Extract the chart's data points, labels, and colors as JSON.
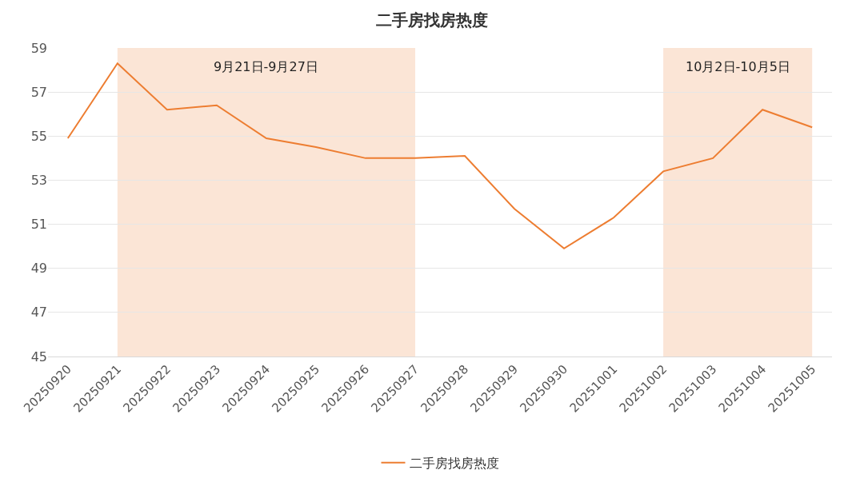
{
  "chart_data": {
    "type": "line",
    "title": "二手房找房热度",
    "categories": [
      "20250920",
      "20250921",
      "20250922",
      "20250923",
      "20250924",
      "20250925",
      "20250926",
      "20250927",
      "20250928",
      "20250929",
      "20250930",
      "20251001",
      "20251002",
      "20251003",
      "20251004",
      "20251005"
    ],
    "series": [
      {
        "name": "二手房找房热度",
        "color": "#ed7d31",
        "values": [
          54.9,
          58.3,
          56.2,
          56.4,
          54.9,
          54.5,
          54.0,
          54.0,
          54.1,
          51.7,
          49.9,
          51.3,
          53.4,
          54.0,
          56.2,
          55.4
        ]
      }
    ],
    "ylim": [
      45,
      59
    ],
    "yticks": [
      45,
      47,
      49,
      51,
      53,
      55,
      57,
      59
    ],
    "bands": [
      {
        "axis": "x",
        "from": "20250921",
        "to": "20250927",
        "label": "9月21日-9月27日",
        "color": "#fbe5d6"
      },
      {
        "axis": "x",
        "from": "20251002",
        "to": "20251005",
        "label": "10月2日-10月5日",
        "color": "#fbe5d6"
      }
    ],
    "grid": "y",
    "legend": "bottom",
    "marker": "none",
    "line_style": "solid"
  }
}
